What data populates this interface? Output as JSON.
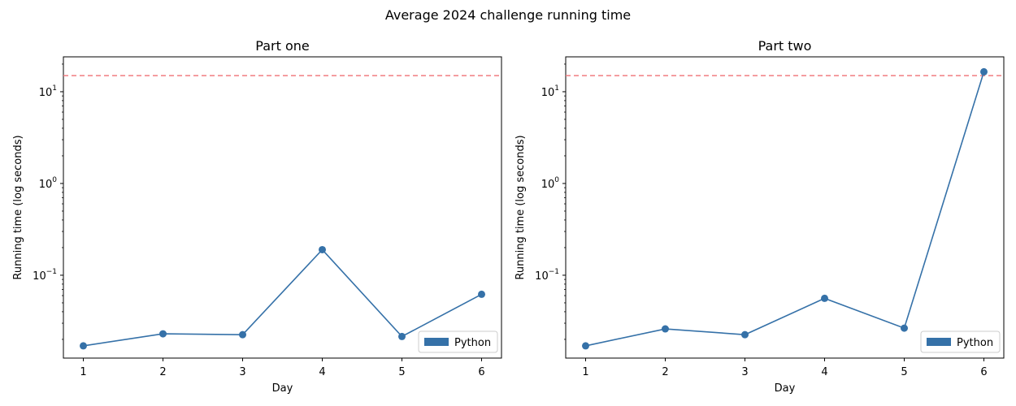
{
  "figure_title": "Average 2024 challenge running time",
  "colors": {
    "series": "#3571a8",
    "threshold": "#f07c80",
    "axis": "#000000"
  },
  "chart_data": [
    {
      "type": "line",
      "title": "Part one",
      "xlabel": "Day",
      "ylabel": "Running time (log seconds)",
      "yscale": "log",
      "xlim": [
        0.75,
        6.25
      ],
      "ylim": [
        0.0125,
        24
      ],
      "x": [
        1,
        2,
        3,
        4,
        5,
        6
      ],
      "xticks": [
        "1",
        "2",
        "3",
        "4",
        "5",
        "6"
      ],
      "yticks": [
        {
          "value": 0.1,
          "label": "10",
          "exp": "−1"
        },
        {
          "value": 1,
          "label": "10",
          "exp": "0"
        },
        {
          "value": 10,
          "label": "10",
          "exp": "1"
        }
      ],
      "series": [
        {
          "name": "Python",
          "values": [
            0.017,
            0.023,
            0.0225,
            0.19,
            0.0215,
            0.062
          ]
        }
      ],
      "threshold": 15,
      "grid": false,
      "legend": "lower right"
    },
    {
      "type": "line",
      "title": "Part two",
      "xlabel": "Day",
      "ylabel": "Running time (log seconds)",
      "yscale": "log",
      "xlim": [
        0.75,
        6.25
      ],
      "ylim": [
        0.0125,
        24
      ],
      "x": [
        1,
        2,
        3,
        4,
        5,
        6
      ],
      "xticks": [
        "1",
        "2",
        "3",
        "4",
        "5",
        "6"
      ],
      "yticks": [
        {
          "value": 0.1,
          "label": "10",
          "exp": "−1"
        },
        {
          "value": 1,
          "label": "10",
          "exp": "0"
        },
        {
          "value": 10,
          "label": "10",
          "exp": "1"
        }
      ],
      "series": [
        {
          "name": "Python",
          "values": [
            0.017,
            0.026,
            0.0225,
            0.056,
            0.0265,
            16.5
          ]
        }
      ],
      "threshold": 15,
      "grid": false,
      "legend": "lower right"
    }
  ]
}
